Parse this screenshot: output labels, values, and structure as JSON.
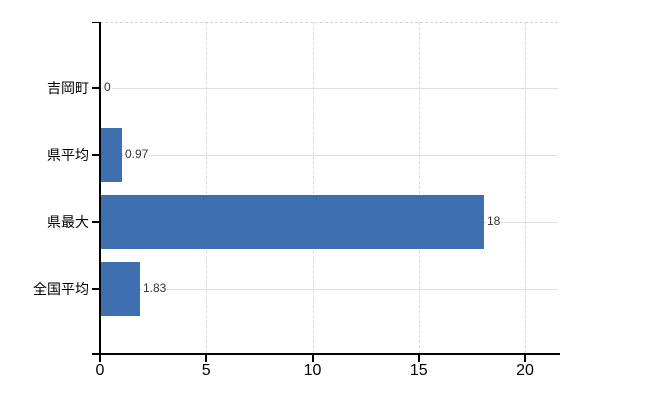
{
  "chart_data": {
    "type": "bar",
    "orientation": "horizontal",
    "title": "",
    "xlabel": "",
    "ylabel": "",
    "categories": [
      "吉岡町",
      "県平均",
      "県最大",
      "全国平均"
    ],
    "values": [
      0,
      0.97,
      18,
      1.83
    ],
    "value_labels": [
      "0",
      "0.97",
      "18",
      "1.83"
    ],
    "x_ticks": [
      0,
      5,
      10,
      15,
      20
    ],
    "x_range": [
      0,
      21.6
    ],
    "grid": true,
    "legend": false,
    "colors": {
      "bar": "#3e6fb0",
      "axis": "#000000",
      "gridline_vertical": "#d9d9d9",
      "gridline_horizontal": "#dbe2db",
      "plot_top_border": "#d4d4d4",
      "category_label": "#000000",
      "value_label": "#333333",
      "tick_label": "#000000",
      "background": "#ffffff"
    }
  }
}
